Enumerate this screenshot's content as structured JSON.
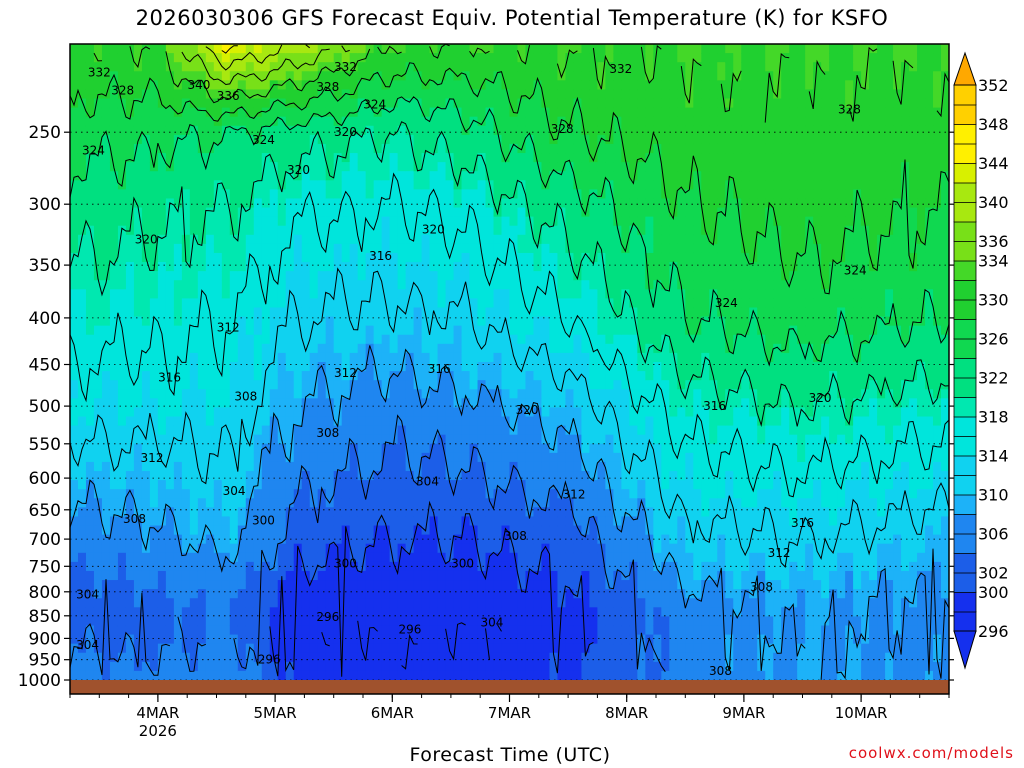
{
  "title": "2026030306 GFS Forecast Equiv. Potential Temperature (K) for KSFO",
  "footer": {
    "credit": "coolwx.com/models"
  },
  "colors": {
    "ground": "#a0522d",
    "palette": [
      "#1530ee",
      "#1c5ee8",
      "#1f86f0",
      "#1db2f8",
      "#10d2f0",
      "#00e5dc",
      "#00e8b0",
      "#00e080",
      "#10d850",
      "#20d030",
      "#44d828",
      "#78e018",
      "#a8e810",
      "#d8f000",
      "#fff000",
      "#ffd000",
      "#ffa800"
    ]
  },
  "chart_data": {
    "type": "heatmap",
    "title": "2026030306 GFS Forecast Equiv. Potential Temperature (K) for KSFO",
    "xlabel": "Forecast Time (UTC)",
    "ylabel": "",
    "x_ticks": [
      {
        "label": "4MAR",
        "sub": "2026",
        "t": 0
      },
      {
        "label": "5MAR",
        "sub": "",
        "t": 1
      },
      {
        "label": "6MAR",
        "sub": "",
        "t": 2
      },
      {
        "label": "7MAR",
        "sub": "",
        "t": 3
      },
      {
        "label": "8MAR",
        "sub": "",
        "t": 4
      },
      {
        "label": "9MAR",
        "sub": "",
        "t": 5
      },
      {
        "label": "10MAR",
        "sub": "",
        "t": 6
      }
    ],
    "xlim": [
      -0.75,
      6.75
    ],
    "y_ticks": [
      250,
      300,
      350,
      400,
      450,
      500,
      550,
      600,
      650,
      700,
      750,
      800,
      850,
      900,
      950,
      1000
    ],
    "ylim": [
      1000,
      200
    ],
    "y_scale": "log",
    "y_units": "hPa",
    "grid": true,
    "colorbar": {
      "labels": [
        296,
        300,
        302,
        306,
        310,
        314,
        318,
        322,
        326,
        330,
        334,
        336,
        340,
        344,
        348,
        352
      ],
      "levels": [
        296,
        298,
        300,
        302,
        304,
        306,
        308,
        310,
        312,
        314,
        316,
        318,
        320,
        322,
        324,
        326,
        328,
        330,
        332,
        334,
        336,
        338,
        340,
        342,
        344,
        346,
        348,
        350,
        352
      ]
    },
    "profiles": [
      {
        "t": -0.75,
        "p": [
          1000,
          850,
          700,
          500,
          400,
          300,
          250,
          200
        ],
        "theta_e": [
          306,
          302,
          306,
          314,
          318,
          322,
          326,
          332
        ]
      },
      {
        "t": 0.0,
        "p": [
          1000,
          850,
          700,
          500,
          400,
          300,
          250,
          200
        ],
        "theta_e": [
          305,
          302,
          307,
          314,
          317,
          321,
          325,
          332
        ]
      },
      {
        "t": 0.6,
        "p": [
          1000,
          850,
          700,
          500,
          400,
          300,
          250,
          200
        ],
        "theta_e": [
          307,
          304,
          309,
          314,
          316,
          320,
          324,
          345
        ]
      },
      {
        "t": 1.2,
        "p": [
          1000,
          850,
          700,
          500,
          400,
          300,
          250,
          200
        ],
        "theta_e": [
          299,
          296,
          302,
          308,
          312,
          317,
          322,
          340
        ]
      },
      {
        "t": 2.0,
        "p": [
          1000,
          850,
          700,
          500,
          400,
          300,
          250,
          200
        ],
        "theta_e": [
          298,
          296,
          300,
          306,
          311,
          316,
          320,
          332
        ]
      },
      {
        "t": 2.6,
        "p": [
          1000,
          850,
          700,
          500,
          400,
          300,
          250,
          200
        ],
        "theta_e": [
          298,
          296,
          300,
          307,
          312,
          317,
          322,
          332
        ]
      },
      {
        "t": 3.5,
        "p": [
          1000,
          850,
          700,
          500,
          400,
          300,
          250,
          200
        ],
        "theta_e": [
          299,
          298,
          302,
          310,
          316,
          322,
          328,
          332
        ]
      },
      {
        "t": 4.5,
        "p": [
          1000,
          850,
          700,
          500,
          400,
          300,
          250,
          200
        ],
        "theta_e": [
          306,
          306,
          311,
          318,
          324,
          328,
          330,
          332
        ]
      },
      {
        "t": 5.5,
        "p": [
          1000,
          850,
          700,
          500,
          400,
          300,
          250,
          200
        ],
        "theta_e": [
          308,
          308,
          312,
          320,
          326,
          330,
          330,
          332
        ]
      },
      {
        "t": 6.75,
        "p": [
          1000,
          850,
          700,
          500,
          400,
          300,
          250,
          200
        ],
        "theta_e": [
          307,
          306,
          310,
          318,
          324,
          328,
          330,
          332
        ]
      }
    ],
    "contour_labels": [
      {
        "text": "332",
        "t": -0.5,
        "p": 215
      },
      {
        "text": "328",
        "t": -0.3,
        "p": 225
      },
      {
        "text": "340",
        "t": 0.35,
        "p": 222
      },
      {
        "text": "336",
        "t": 0.6,
        "p": 228
      },
      {
        "text": "332",
        "t": 1.6,
        "p": 212
      },
      {
        "text": "328",
        "t": 1.45,
        "p": 223
      },
      {
        "text": "324",
        "t": 1.85,
        "p": 233
      },
      {
        "text": "332",
        "t": 3.95,
        "p": 213
      },
      {
        "text": "328",
        "t": 5.9,
        "p": 236
      },
      {
        "text": "328",
        "t": 3.45,
        "p": 248
      },
      {
        "text": "324",
        "t": -0.55,
        "p": 262
      },
      {
        "text": "324",
        "t": 0.9,
        "p": 255
      },
      {
        "text": "320",
        "t": 1.6,
        "p": 250
      },
      {
        "text": "320",
        "t": 1.2,
        "p": 275
      },
      {
        "text": "320",
        "t": -0.1,
        "p": 328
      },
      {
        "text": "320",
        "t": 2.35,
        "p": 320
      },
      {
        "text": "316",
        "t": 1.9,
        "p": 342
      },
      {
        "text": "324",
        "t": 4.85,
        "p": 385
      },
      {
        "text": "324",
        "t": 5.95,
        "p": 355
      },
      {
        "text": "312",
        "t": 0.6,
        "p": 410
      },
      {
        "text": "316",
        "t": 0.1,
        "p": 465
      },
      {
        "text": "308",
        "t": 0.75,
        "p": 488
      },
      {
        "text": "312",
        "t": 1.6,
        "p": 460
      },
      {
        "text": "316",
        "t": 2.4,
        "p": 455
      },
      {
        "text": "320",
        "t": 3.15,
        "p": 505
      },
      {
        "text": "316",
        "t": 4.75,
        "p": 500
      },
      {
        "text": "320",
        "t": 5.65,
        "p": 490
      },
      {
        "text": "308",
        "t": 1.45,
        "p": 535
      },
      {
        "text": "312",
        "t": -0.05,
        "p": 570
      },
      {
        "text": "304",
        "t": 0.65,
        "p": 620
      },
      {
        "text": "304",
        "t": 2.3,
        "p": 605
      },
      {
        "text": "312",
        "t": 3.55,
        "p": 625
      },
      {
        "text": "316",
        "t": 5.5,
        "p": 672
      },
      {
        "text": "308",
        "t": -0.2,
        "p": 665
      },
      {
        "text": "300",
        "t": 0.9,
        "p": 668
      },
      {
        "text": "308",
        "t": 3.05,
        "p": 695
      },
      {
        "text": "300",
        "t": 1.6,
        "p": 745
      },
      {
        "text": "300",
        "t": 2.6,
        "p": 745
      },
      {
        "text": "312",
        "t": 5.3,
        "p": 725
      },
      {
        "text": "304",
        "t": -0.6,
        "p": 805
      },
      {
        "text": "308",
        "t": 5.15,
        "p": 790
      },
      {
        "text": "296",
        "t": 1.45,
        "p": 853
      },
      {
        "text": "296",
        "t": 2.15,
        "p": 880
      },
      {
        "text": "304",
        "t": 2.85,
        "p": 865
      },
      {
        "text": "304",
        "t": -0.6,
        "p": 915
      },
      {
        "text": "296",
        "t": 0.95,
        "p": 950
      },
      {
        "text": "308",
        "t": 4.8,
        "p": 978
      }
    ]
  }
}
